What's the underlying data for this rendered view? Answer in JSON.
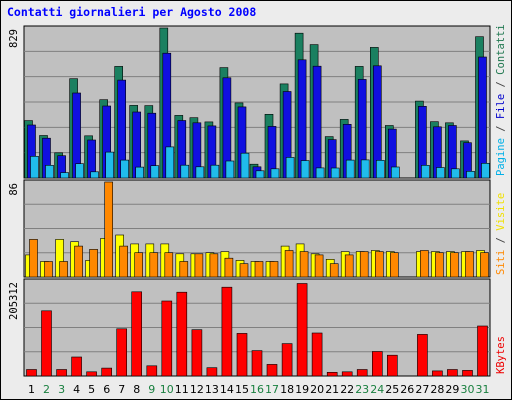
{
  "chart_data": {
    "type": "bar",
    "title": "Contatti giornalieri per Agosto 2008",
    "days": [
      "1",
      "2",
      "3",
      "4",
      "5",
      "6",
      "7",
      "8",
      "9",
      "10",
      "11",
      "12",
      "13",
      "14",
      "15",
      "16",
      "17",
      "18",
      "19",
      "20",
      "21",
      "22",
      "23",
      "24",
      "25",
      "26",
      "27",
      "28",
      "29",
      "30",
      "31"
    ],
    "weekend_days": [
      2,
      3,
      9,
      10,
      16,
      17,
      23,
      24,
      30,
      31
    ],
    "panels": [
      {
        "id": "pages",
        "ymax_label": "829",
        "ymax": 829,
        "right_labels": [
          {
            "text": "Pagine",
            "color": "#00b0e8"
          },
          {
            "text": " / ",
            "color": "#444444"
          },
          {
            "text": "File",
            "color": "#0000cc"
          },
          {
            "text": " / ",
            "color": "#444444"
          },
          {
            "text": "Contatti",
            "color": "#207850"
          }
        ],
        "series": [
          {
            "name": "Contatti",
            "color": "#1a8060",
            "values": [
              317,
              235,
              139,
              549,
              233,
              433,
              617,
              401,
              400,
              829,
              346,
              333,
              310,
              610,
              415,
              76,
              352,
              520,
              800,
              737,
              229,
              324,
              617,
              722,
              290,
              0,
              425,
              311,
              305,
              205,
              781
            ]
          },
          {
            "name": "File",
            "color": "#1010e0",
            "values": [
              293,
              220,
              123,
              470,
              210,
              398,
              541,
              365,
              358,
              690,
              318,
              305,
              288,
              554,
              393,
              62,
              285,
              478,
              653,
              618,
              212,
              297,
              545,
              620,
              270,
              0,
              396,
              283,
              290,
              195,
              669
            ]
          },
          {
            "name": "Pagine",
            "color": "#20bcec",
            "values": [
              120,
              70,
              30,
              79,
              34,
              143,
              99,
              60,
              68,
              172,
              71,
              62,
              71,
              94,
              137,
              40,
              51,
              114,
              96,
              56,
              55,
              99,
              100,
              98,
              61,
              0,
              70,
              58,
              51,
              37,
              81
            ]
          }
        ]
      },
      {
        "id": "visits",
        "ymax_label": "86",
        "ymax": 86,
        "right_labels": [
          {
            "text": "Siti",
            "color": "#ff8800"
          },
          {
            "text": " / ",
            "color": "#444444"
          },
          {
            "text": "Visite",
            "color": "#f0e000"
          }
        ],
        "series": [
          {
            "name": "Visite",
            "color": "#ffff00",
            "values": [
              20,
              14,
              34,
              32,
              15,
              35,
              38,
              30,
              30,
              30,
              21,
              21,
              22,
              23,
              15,
              14,
              14,
              28,
              30,
              21,
              16,
              23,
              23,
              24,
              23,
              0,
              23,
              23,
              23,
              23,
              24
            ]
          },
          {
            "name": "Siti",
            "color": "#ff8800",
            "values": [
              34,
              14,
              14,
              28,
              25,
              86,
              28,
              22,
              22,
              22,
              14,
              21,
              21,
              17,
              12,
              14,
              14,
              24,
              23,
              20,
              12,
              20,
              23,
              23,
              22,
              0,
              24,
              22,
              22,
              23,
              22
            ]
          }
        ]
      },
      {
        "id": "kbytes",
        "ymax_label": "205312",
        "ymax": 205312,
        "right_labels": [
          {
            "text": "KBytes",
            "color": "#ee0000"
          }
        ],
        "series": [
          {
            "name": "KBytes",
            "color": "#ff0000",
            "values": [
              14000,
              141000,
              14000,
              41000,
              9000,
              17000,
              102000,
              182000,
              22000,
              162000,
              181000,
              100000,
              18000,
              192000,
              92000,
              55000,
              25000,
              70000,
              200000,
              93000,
              8000,
              9000,
              14000,
              53000,
              45000,
              0,
              90000,
              11000,
              14000,
              12000,
              108000
            ]
          }
        ]
      }
    ]
  },
  "colors": {
    "background": "#ececec",
    "plot_background": "#c0c0c0",
    "gridline": "#808080",
    "title": "#0000ff",
    "weekday_label": "#000000",
    "weekend_label": "#1a8040"
  }
}
